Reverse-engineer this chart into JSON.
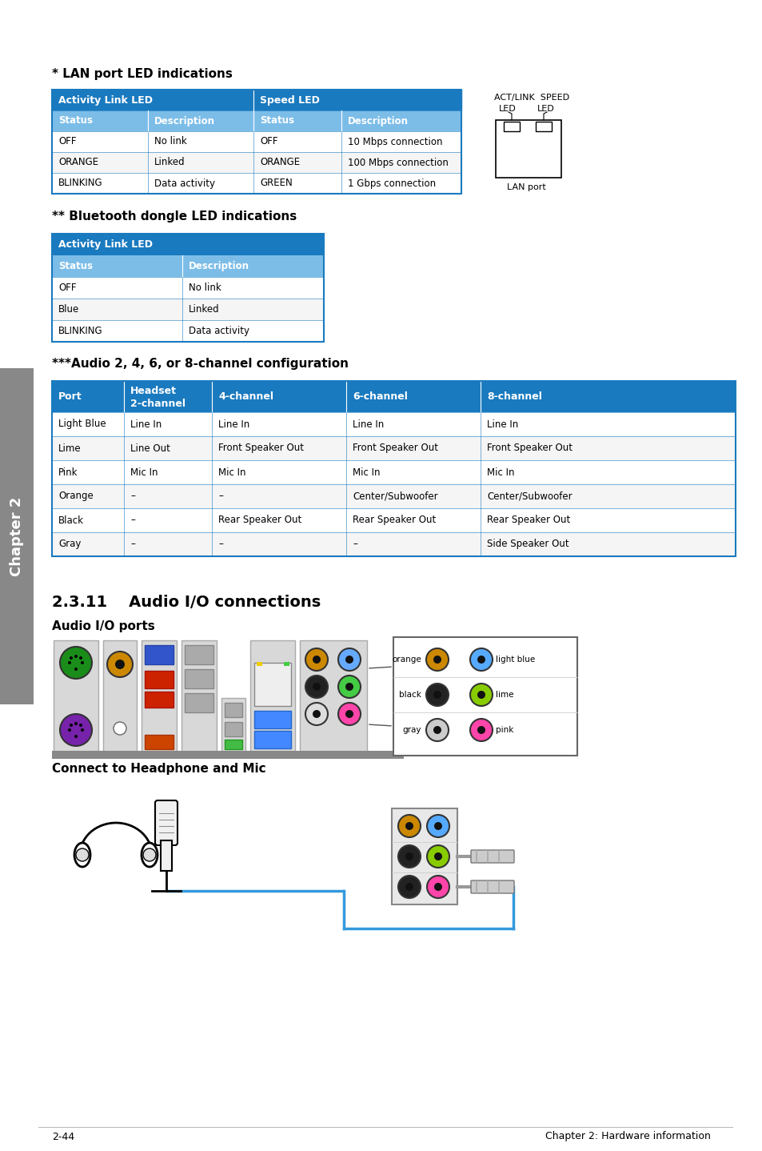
{
  "page_bg": "#ffffff",
  "header_bg": "#1a7abf",
  "subheader_bg": "#7cbde8",
  "table_border": "#1a7abf",
  "chapter_bg": "#888888",
  "footer_left": "2-44",
  "footer_right": "Chapter 2: Hardware information",
  "title1": "* LAN port LED indications",
  "title2": "** Bluetooth dongle LED indications",
  "title3": "***Audio 2, 4, 6, or 8-channel configuration",
  "title4": "2.3.11    Audio I/O connections",
  "title5": "Audio I/O ports",
  "title6": "Connect to Headphone and Mic",
  "lan_table": {
    "headers": [
      "Activity Link LED",
      "Speed LED"
    ],
    "subheaders": [
      "Status",
      "Description",
      "Status",
      "Description"
    ],
    "rows": [
      [
        "OFF",
        "No link",
        "OFF",
        "10 Mbps connection"
      ],
      [
        "ORANGE",
        "Linked",
        "ORANGE",
        "100 Mbps connection"
      ],
      [
        "BLINKING",
        "Data activity",
        "GREEN",
        "1 Gbps connection"
      ]
    ]
  },
  "bt_table": {
    "header": "Activity Link LED",
    "subheaders": [
      "Status",
      "Description"
    ],
    "rows": [
      [
        "OFF",
        "No link"
      ],
      [
        "Blue",
        "Linked"
      ],
      [
        "BLINKING",
        "Data activity"
      ]
    ]
  },
  "audio_table": {
    "headers": [
      "Port",
      "Headset\n2-channel",
      "4-channel",
      "6-channel",
      "8-channel"
    ],
    "rows": [
      [
        "Light Blue",
        "Line In",
        "Line In",
        "Line In",
        "Line In"
      ],
      [
        "Lime",
        "Line Out",
        "Front Speaker Out",
        "Front Speaker Out",
        "Front Speaker Out"
      ],
      [
        "Pink",
        "Mic In",
        "Mic In",
        "Mic In",
        "Mic In"
      ],
      [
        "Orange",
        "–",
        "–",
        "Center/Subwoofer",
        "Center/Subwoofer"
      ],
      [
        "Black",
        "–",
        "Rear Speaker Out",
        "Rear Speaker Out",
        "Rear Speaker Out"
      ],
      [
        "Gray",
        "–",
        "–",
        "–",
        "Side Speaker Out"
      ]
    ]
  }
}
